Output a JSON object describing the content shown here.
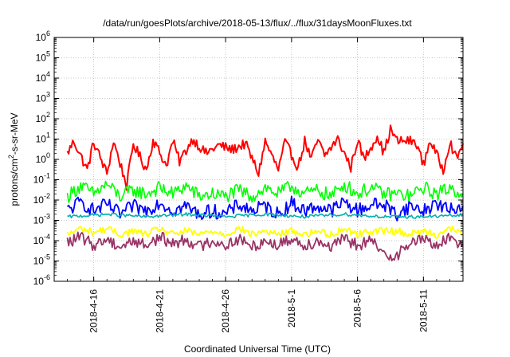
{
  "chart_data": {
    "type": "line",
    "title": "/data/run/goesPlots/archive/2018-05-13/flux/../flux/31daysMoonFluxes.txt",
    "xlabel": "Coordinated Universal Time (UTC)",
    "ylabel_parts": {
      "base": "protons/cm",
      "sup": "2",
      "rest": "-s-sr-MeV"
    },
    "yscale": "log",
    "ylim_exponents": [
      -6,
      6
    ],
    "y_ticks": [
      {
        "base": "10",
        "exp": "-6",
        "value": 1e-06
      },
      {
        "base": "10",
        "exp": "-5",
        "value": 1e-05
      },
      {
        "base": "10",
        "exp": "-4",
        "value": 0.0001
      },
      {
        "base": "10",
        "exp": "-3",
        "value": 0.001
      },
      {
        "base": "10",
        "exp": "-2",
        "value": 0.01
      },
      {
        "base": "10",
        "exp": "-1",
        "value": 0.1
      },
      {
        "base": "10",
        "exp": "0",
        "value": 1
      },
      {
        "base": "10",
        "exp": "1",
        "value": 10
      },
      {
        "base": "10",
        "exp": "2",
        "value": 100
      },
      {
        "base": "10",
        "exp": "3",
        "value": 1000
      },
      {
        "base": "10",
        "exp": "4",
        "value": 10000
      },
      {
        "base": "10",
        "exp": "5",
        "value": 100000
      },
      {
        "base": "10",
        "exp": "6",
        "value": 1000000
      }
    ],
    "x_domain": [
      "2018-04-13T00:00",
      "2018-05-14T00:00"
    ],
    "x_ticks": [
      {
        "label": "2018-4-16",
        "date": "2018-04-16"
      },
      {
        "label": "2018-4-21",
        "date": "2018-04-21"
      },
      {
        "label": "2018-4-26",
        "date": "2018-04-26"
      },
      {
        "label": "2018-5-1",
        "date": "2018-05-01"
      },
      {
        "label": "2018-5-6",
        "date": "2018-05-06"
      },
      {
        "label": "2018-5-11",
        "date": "2018-05-11"
      }
    ],
    "grid": true,
    "legend": "none",
    "series": [
      {
        "color": "#ff0000",
        "values": [
          [
            1.0,
            2.0
          ],
          [
            1.5,
            8.0
          ],
          [
            2.5,
            0.3
          ],
          [
            3.0,
            7.0
          ],
          [
            4.0,
            0.2
          ],
          [
            4.5,
            8.0
          ],
          [
            5.5,
            0.05
          ],
          [
            6.0,
            6.0
          ],
          [
            7.0,
            0.3
          ],
          [
            7.5,
            9.0
          ],
          [
            8.5,
            0.5
          ],
          [
            9.0,
            8.0
          ],
          [
            9.5,
            0.8
          ],
          [
            10.5,
            10.0
          ],
          [
            11.5,
            2.0
          ],
          [
            12.5,
            5.0
          ],
          [
            13.5,
            3.0
          ],
          [
            14.5,
            6.0
          ],
          [
            15.5,
            0.2
          ],
          [
            16.0,
            8.0
          ],
          [
            17.0,
            0.3
          ],
          [
            17.5,
            7.0
          ],
          [
            18.5,
            0.4
          ],
          [
            19.0,
            8.0
          ],
          [
            19.5,
            1.0
          ],
          [
            20.0,
            9.0
          ],
          [
            20.5,
            1.5
          ],
          [
            21.5,
            10.0
          ],
          [
            22.5,
            0.4
          ],
          [
            23.0,
            9.0
          ],
          [
            23.5,
            1.0
          ],
          [
            24.5,
            15.0
          ],
          [
            25.0,
            2.0
          ],
          [
            25.5,
            30.0
          ],
          [
            26.0,
            8.0
          ],
          [
            27.0,
            8.0
          ],
          [
            27.5,
            6.0
          ],
          [
            28.0,
            0.5
          ],
          [
            28.5,
            9.0
          ],
          [
            29.5,
            0.3
          ],
          [
            30.0,
            8.0
          ],
          [
            30.5,
            1.0
          ],
          [
            31.0,
            6.0
          ]
        ]
      },
      {
        "color": "#00ff00",
        "values": [
          [
            1.0,
            0.015
          ],
          [
            2.0,
            0.05
          ],
          [
            3.0,
            0.02
          ],
          [
            4.0,
            0.06
          ],
          [
            5.0,
            0.015
          ],
          [
            6.0,
            0.03
          ],
          [
            7.0,
            0.02
          ],
          [
            8.0,
            0.04
          ],
          [
            9.0,
            0.02
          ],
          [
            10.0,
            0.05
          ],
          [
            11.0,
            0.015
          ],
          [
            12.0,
            0.02
          ],
          [
            13.0,
            0.015
          ],
          [
            14.0,
            0.03
          ],
          [
            15.0,
            0.015
          ],
          [
            16.0,
            0.04
          ],
          [
            17.0,
            0.02
          ],
          [
            18.0,
            0.05
          ],
          [
            19.0,
            0.02
          ],
          [
            20.0,
            0.03
          ],
          [
            21.0,
            0.015
          ],
          [
            22.0,
            0.06
          ],
          [
            23.0,
            0.02
          ],
          [
            24.0,
            0.04
          ],
          [
            25.0,
            0.02
          ],
          [
            26.0,
            0.02
          ],
          [
            27.0,
            0.015
          ],
          [
            28.0,
            0.04
          ],
          [
            29.0,
            0.02
          ],
          [
            30.0,
            0.04
          ],
          [
            31.0,
            0.02
          ]
        ]
      },
      {
        "color": "#0000ff",
        "values": [
          [
            1.0,
            0.003
          ],
          [
            2.0,
            0.008
          ],
          [
            3.0,
            0.003
          ],
          [
            4.0,
            0.006
          ],
          [
            5.0,
            0.002
          ],
          [
            6.0,
            0.005
          ],
          [
            7.0,
            0.003
          ],
          [
            8.0,
            0.008
          ],
          [
            9.0,
            0.003
          ],
          [
            10.0,
            0.005
          ],
          [
            11.0,
            0.002
          ],
          [
            12.0,
            0.003
          ],
          [
            13.0,
            0.002
          ],
          [
            14.0,
            0.006
          ],
          [
            15.0,
            0.003
          ],
          [
            16.0,
            0.005
          ],
          [
            17.0,
            0.002
          ],
          [
            18.0,
            0.007
          ],
          [
            19.0,
            0.003
          ],
          [
            20.0,
            0.005
          ],
          [
            21.0,
            0.003
          ],
          [
            22.0,
            0.008
          ],
          [
            23.0,
            0.003
          ],
          [
            24.0,
            0.006
          ],
          [
            25.0,
            0.006
          ],
          [
            26.0,
            0.002
          ],
          [
            27.0,
            0.005
          ],
          [
            28.0,
            0.003
          ],
          [
            29.0,
            0.007
          ],
          [
            30.0,
            0.003
          ],
          [
            31.0,
            0.005
          ]
        ]
      },
      {
        "color": "#00b0b0",
        "values": [
          [
            1.0,
            0.0015
          ],
          [
            4.0,
            0.002
          ],
          [
            7.0,
            0.0015
          ],
          [
            10.0,
            0.002
          ],
          [
            13.0,
            0.0015
          ],
          [
            16.0,
            0.002
          ],
          [
            19.0,
            0.0015
          ],
          [
            22.0,
            0.002
          ],
          [
            25.0,
            0.0015
          ],
          [
            28.0,
            0.0015
          ],
          [
            31.0,
            0.0018
          ]
        ]
      },
      {
        "color": "#ffff00",
        "values": [
          [
            1.0,
            0.0002
          ],
          [
            2.0,
            0.0004
          ],
          [
            3.0,
            0.00025
          ],
          [
            4.0,
            0.0004
          ],
          [
            5.0,
            0.0002
          ],
          [
            6.0,
            0.0003
          ],
          [
            7.0,
            0.0002
          ],
          [
            8.0,
            0.0004
          ],
          [
            9.0,
            0.0002
          ],
          [
            10.0,
            0.0003
          ],
          [
            11.0,
            0.0002
          ],
          [
            12.0,
            0.0003
          ],
          [
            13.0,
            0.0002
          ],
          [
            14.0,
            0.0004
          ],
          [
            15.0,
            0.0002
          ],
          [
            16.0,
            0.0003
          ],
          [
            17.0,
            0.0002
          ],
          [
            18.0,
            0.0003
          ],
          [
            19.0,
            0.0002
          ],
          [
            20.0,
            0.0003
          ],
          [
            21.0,
            0.0002
          ],
          [
            22.0,
            0.0004
          ],
          [
            23.0,
            0.0002
          ],
          [
            24.0,
            0.0003
          ],
          [
            25.0,
            0.0003
          ],
          [
            26.0,
            0.0003
          ],
          [
            27.0,
            0.0002
          ],
          [
            28.0,
            0.0003
          ],
          [
            29.0,
            0.0002
          ],
          [
            30.0,
            0.0004
          ],
          [
            31.0,
            0.0002
          ]
        ]
      },
      {
        "color": "#993366",
        "values": [
          [
            1.0,
            8e-05
          ],
          [
            2.0,
            0.00015
          ],
          [
            3.0,
            6e-05
          ],
          [
            4.0,
            0.00012
          ],
          [
            5.0,
            5e-05
          ],
          [
            6.0,
            0.0001
          ],
          [
            7.0,
            6e-05
          ],
          [
            8.0,
            0.00015
          ],
          [
            9.0,
            7e-05
          ],
          [
            10.0,
            0.00012
          ],
          [
            11.0,
            5e-05
          ],
          [
            12.0,
            0.0001
          ],
          [
            13.0,
            6e-05
          ],
          [
            14.0,
            0.00012
          ],
          [
            15.0,
            5e-05
          ],
          [
            16.0,
            0.0001
          ],
          [
            17.0,
            6e-05
          ],
          [
            18.0,
            0.00013
          ],
          [
            19.0,
            6e-05
          ],
          [
            20.0,
            0.0001
          ],
          [
            21.0,
            5e-05
          ],
          [
            22.0,
            0.00012
          ],
          [
            23.0,
            6e-05
          ],
          [
            24.0,
            0.0001
          ],
          [
            25.0,
            2e-05
          ],
          [
            26.0,
            2e-05
          ],
          [
            27.0,
            8e-05
          ],
          [
            28.0,
            0.00012
          ],
          [
            29.0,
            6e-05
          ],
          [
            30.0,
            0.00013
          ],
          [
            31.0,
            7e-05
          ]
        ]
      }
    ]
  }
}
